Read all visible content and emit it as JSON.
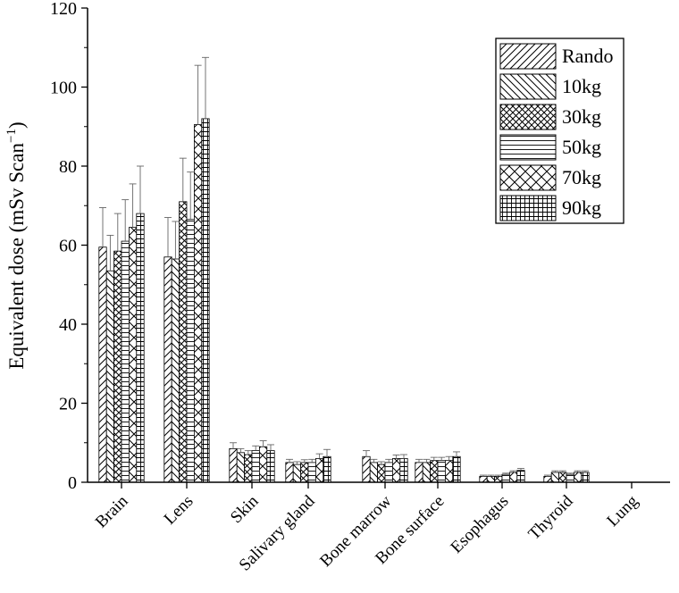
{
  "chart_data": {
    "type": "bar",
    "title": "",
    "xlabel": "",
    "ylabel": "Equivalent dose (mSv Scan",
    "ylabel_sup": "−1",
    "ylabel_end": ")",
    "ylim": [
      0,
      120
    ],
    "yticks": [
      0,
      20,
      40,
      60,
      80,
      100,
      120
    ],
    "grid": false,
    "legend_position": "top-right",
    "categories": [
      "Brain",
      "Lens",
      "Skin",
      "Salivary gland",
      "Bone marrow",
      "Bone surface",
      "Esophagus",
      "Thyroid",
      "Lung"
    ],
    "series": [
      {
        "name": "Rando",
        "pattern": "diag-right",
        "values": [
          59.5,
          57,
          8.5,
          5.0,
          6.5,
          5.0,
          1.5,
          1.5,
          0
        ],
        "errors": [
          10,
          10,
          1.5,
          0.8,
          1.5,
          0.8,
          0.3,
          0.3,
          0
        ]
      },
      {
        "name": "10kg",
        "pattern": "diag-left",
        "values": [
          53.5,
          56.5,
          7.5,
          4.5,
          5.0,
          5.0,
          1.5,
          2.5,
          0
        ],
        "errors": [
          9,
          9.5,
          1.0,
          0.7,
          0.8,
          0.8,
          0.3,
          0.4,
          0
        ]
      },
      {
        "name": "30kg",
        "pattern": "crosshatch-diag",
        "values": [
          58.5,
          71,
          7.0,
          5.0,
          4.5,
          5.5,
          1.5,
          2.5,
          0
        ],
        "errors": [
          9.5,
          11,
          1.0,
          0.7,
          0.7,
          0.8,
          0.3,
          0.4,
          0
        ]
      },
      {
        "name": "50kg",
        "pattern": "horizontal",
        "values": [
          61,
          66.5,
          8.0,
          5.0,
          5.0,
          5.5,
          2.0,
          2.0,
          0
        ],
        "errors": [
          10.5,
          12,
          1.2,
          0.8,
          0.8,
          0.8,
          0.3,
          0.3,
          0
        ]
      },
      {
        "name": "70kg",
        "pattern": "crosshatch-wide",
        "values": [
          64.5,
          90.5,
          9.0,
          6.0,
          6.0,
          5.5,
          2.5,
          2.5,
          0
        ],
        "errors": [
          11,
          15,
          1.5,
          1.2,
          0.9,
          1.0,
          0.4,
          0.4,
          0
        ]
      },
      {
        "name": "90kg",
        "pattern": "grid",
        "values": [
          68,
          92,
          8.0,
          6.5,
          6.0,
          6.5,
          3.0,
          2.5,
          0
        ],
        "errors": [
          12,
          15.5,
          1.5,
          1.8,
          1.0,
          1.2,
          0.5,
          0.4,
          0
        ]
      }
    ]
  }
}
